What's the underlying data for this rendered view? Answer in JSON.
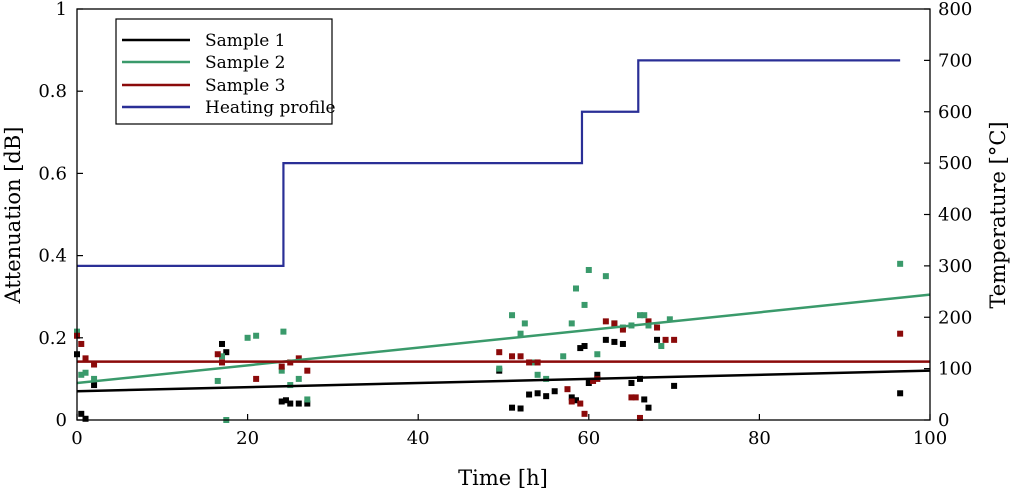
{
  "chart_data": {
    "type": "scatter",
    "title": "",
    "xlabel": "Time [h]",
    "ylabel": "Attenuation [dB]",
    "y2label": "Temperature [°C]",
    "xlim": [
      0,
      100
    ],
    "ylim": [
      0,
      1
    ],
    "y2lim": [
      0,
      800
    ],
    "xticks": [
      "0",
      "20",
      "40",
      "60",
      "80",
      "100"
    ],
    "yticks": [
      "0",
      "0.2",
      "0.4",
      "0.6",
      "0.8",
      "1"
    ],
    "y2ticks": [
      "0",
      "100",
      "200",
      "300",
      "400",
      "500",
      "600",
      "700",
      "800"
    ],
    "grid": false,
    "legend_position": "top-left",
    "colors": {
      "sample1": "#000000",
      "sample2": "#3a9a6b",
      "sample3": "#8b0a0a",
      "heating": "#2a2f96"
    },
    "legend": [
      "Sample 1",
      "Sample 2",
      "Sample 3",
      "Heating profile"
    ],
    "series": [
      {
        "name": "Sample 1",
        "color": "#000000",
        "fit": [
          [
            0,
            0.07
          ],
          [
            100,
            0.12
          ]
        ],
        "points": [
          [
            0,
            0.16
          ],
          [
            0.5,
            0.015
          ],
          [
            1,
            0.003
          ],
          [
            2,
            0.085
          ],
          [
            17,
            0.185
          ],
          [
            17.5,
            0.165
          ],
          [
            24,
            0.045
          ],
          [
            24.5,
            0.048
          ],
          [
            25,
            0.04
          ],
          [
            26,
            0.04
          ],
          [
            27,
            0.04
          ],
          [
            49.5,
            0.12
          ],
          [
            51,
            0.03
          ],
          [
            52,
            0.028
          ],
          [
            53,
            0.062
          ],
          [
            54,
            0.065
          ],
          [
            55,
            0.058
          ],
          [
            56,
            0.07
          ],
          [
            58,
            0.055
          ],
          [
            58.5,
            0.048
          ],
          [
            59,
            0.175
          ],
          [
            59.5,
            0.18
          ],
          [
            60,
            0.09
          ],
          [
            61,
            0.11
          ],
          [
            62,
            0.195
          ],
          [
            63,
            0.19
          ],
          [
            64,
            0.185
          ],
          [
            65,
            0.09
          ],
          [
            66,
            0.1
          ],
          [
            66.5,
            0.05
          ],
          [
            67,
            0.03
          ],
          [
            68,
            0.195
          ],
          [
            70,
            0.083
          ],
          [
            96.5,
            0.065
          ]
        ]
      },
      {
        "name": "Sample 2",
        "color": "#3a9a6b",
        "fit": [
          [
            0,
            0.09
          ],
          [
            100,
            0.305
          ]
        ],
        "points": [
          [
            0,
            0.215
          ],
          [
            0.5,
            0.11
          ],
          [
            1,
            0.115
          ],
          [
            2,
            0.1
          ],
          [
            16.5,
            0.095
          ],
          [
            17,
            0.155
          ],
          [
            17.5,
            0.0
          ],
          [
            20,
            0.2
          ],
          [
            21,
            0.205
          ],
          [
            24,
            0.12
          ],
          [
            24.2,
            0.215
          ],
          [
            25,
            0.085
          ],
          [
            26,
            0.1
          ],
          [
            27,
            0.05
          ],
          [
            49.5,
            0.125
          ],
          [
            51,
            0.255
          ],
          [
            52,
            0.21
          ],
          [
            52.5,
            0.235
          ],
          [
            53.5,
            0.14
          ],
          [
            54,
            0.11
          ],
          [
            55,
            0.1
          ],
          [
            57,
            0.155
          ],
          [
            58,
            0.235
          ],
          [
            58.5,
            0.32
          ],
          [
            59.5,
            0.28
          ],
          [
            60,
            0.365
          ],
          [
            61,
            0.16
          ],
          [
            62,
            0.35
          ],
          [
            63,
            0.235
          ],
          [
            64,
            0.225
          ],
          [
            65,
            0.23
          ],
          [
            66,
            0.255
          ],
          [
            66.5,
            0.255
          ],
          [
            67,
            0.23
          ],
          [
            68.5,
            0.18
          ],
          [
            69.5,
            0.245
          ],
          [
            96.5,
            0.38
          ]
        ]
      },
      {
        "name": "Sample 3",
        "color": "#8b0a0a",
        "fit": [
          [
            0,
            0.142
          ],
          [
            100,
            0.142
          ]
        ],
        "points": [
          [
            0,
            0.205
          ],
          [
            0.5,
            0.185
          ],
          [
            1,
            0.15
          ],
          [
            2,
            0.135
          ],
          [
            16.5,
            0.16
          ],
          [
            17,
            0.14
          ],
          [
            21,
            0.1
          ],
          [
            24,
            0.13
          ],
          [
            25,
            0.14
          ],
          [
            26,
            0.15
          ],
          [
            27,
            0.12
          ],
          [
            49.5,
            0.165
          ],
          [
            51,
            0.155
          ],
          [
            52,
            0.155
          ],
          [
            53,
            0.14
          ],
          [
            54,
            0.14
          ],
          [
            57.5,
            0.075
          ],
          [
            58,
            0.045
          ],
          [
            59,
            0.04
          ],
          [
            59.5,
            0.015
          ],
          [
            60.5,
            0.095
          ],
          [
            61,
            0.1
          ],
          [
            62,
            0.24
          ],
          [
            63,
            0.235
          ],
          [
            64,
            0.22
          ],
          [
            65,
            0.055
          ],
          [
            65.5,
            0.055
          ],
          [
            66,
            0.005
          ],
          [
            67,
            0.24
          ],
          [
            68,
            0.225
          ],
          [
            69,
            0.195
          ],
          [
            70,
            0.195
          ],
          [
            96.5,
            0.21
          ]
        ]
      }
    ],
    "heating_profile": {
      "name": "Heating profile",
      "color": "#2a2f96",
      "axis": "right",
      "points": [
        [
          0,
          300
        ],
        [
          24.2,
          300
        ],
        [
          24.2,
          500
        ],
        [
          59.2,
          500
        ],
        [
          59.2,
          600
        ],
        [
          65.8,
          600
        ],
        [
          65.8,
          700
        ],
        [
          96.5,
          700
        ]
      ]
    }
  }
}
